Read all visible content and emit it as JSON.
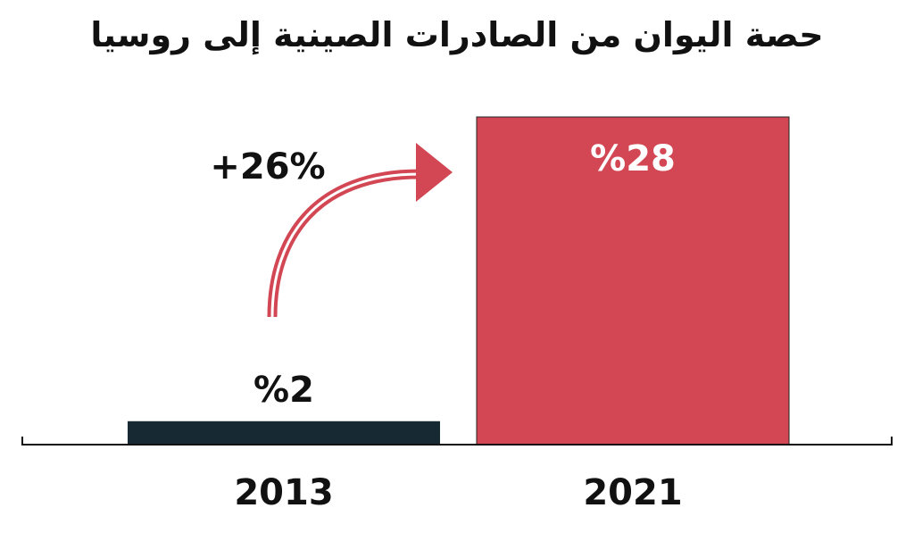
{
  "chart_data": {
    "type": "bar",
    "title": "حصة اليوان من الصادرات الصينية إلى روسيا",
    "categories": [
      "2013",
      "2021"
    ],
    "values": [
      2,
      28
    ],
    "value_labels": [
      "%2",
      "%28"
    ],
    "ylim": [
      0,
      28
    ],
    "grid": false,
    "legend": "none",
    "change_label": "+26%",
    "colors": {
      "bar_2013": "#172a33",
      "bar_2021": "#d24753",
      "arrow": "#d24753",
      "label_on_dark": "#111111",
      "label_on_red": "#ffffff"
    }
  }
}
